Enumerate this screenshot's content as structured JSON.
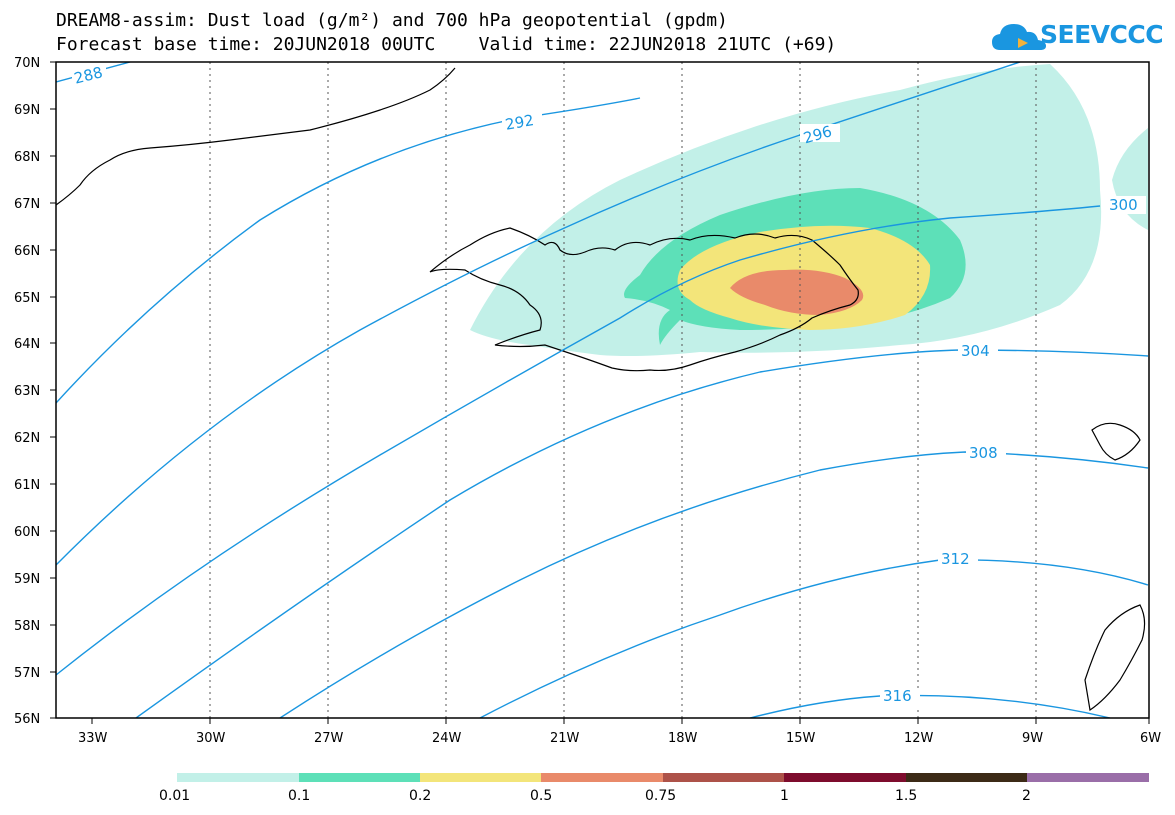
{
  "title": {
    "line1": "DREAM8-assim: Dust load (g/m²) and 700 hPa geopotential (gpdm)",
    "line2": "Forecast base time: 20JUN2018 00UTC    Valid time: 22JUN2018 21UTC (+69)"
  },
  "logo": {
    "text": "SEEVCCC",
    "icon": "cloud-icon",
    "color": "#1a96e0"
  },
  "map": {
    "lat_labels": [
      "70N",
      "69N",
      "68N",
      "67N",
      "66N",
      "65N",
      "64N",
      "63N",
      "62N",
      "61N",
      "60N",
      "59N",
      "58N",
      "57N",
      "56N"
    ],
    "lon_labels": [
      "33W",
      "30W",
      "27W",
      "24W",
      "21W",
      "18W",
      "15W",
      "12W",
      "9W",
      "6W"
    ],
    "lon_range": [
      -34.5,
      -6
    ],
    "lat_range": [
      56,
      70
    ],
    "contour_color": "#1a96e0",
    "contour_labels": [
      "288",
      "292",
      "296",
      "300",
      "304",
      "308",
      "312",
      "316"
    ]
  },
  "colorbar": {
    "labels": [
      "0.01",
      "0.1",
      "0.2",
      "0.5",
      "0.75",
      "1",
      "1.5",
      "2"
    ],
    "colors": [
      "#c2f0e8",
      "#5de0b8",
      "#f3e57a",
      "#e98a6a",
      "#ad5249",
      "#7e0c2d",
      "#3c2a16",
      "#9a6ea8"
    ]
  }
}
